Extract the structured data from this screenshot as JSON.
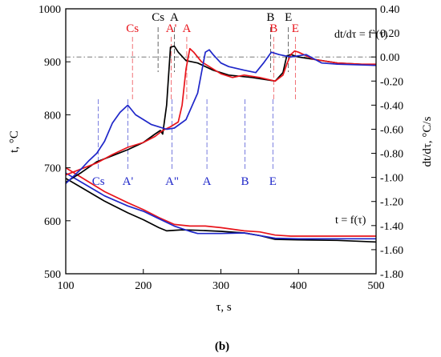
{
  "colors": {
    "black": "#000000",
    "red": "#e8141b",
    "blue": "#1f27c9"
  },
  "caption": "(b)",
  "chart_data": {
    "type": "line",
    "x": {
      "label": "τ, s",
      "range": [
        100,
        500
      ],
      "ticks": [
        100,
        200,
        300,
        400,
        500
      ],
      "tick_labels": [
        "100",
        "200",
        "300",
        "400",
        "500"
      ]
    },
    "y_left": {
      "label": "t, °C",
      "range": [
        500,
        1000
      ],
      "ticks": [
        500,
        600,
        700,
        800,
        900,
        1000
      ],
      "tick_labels": [
        "500",
        "600",
        "700",
        "800",
        "900",
        "1000"
      ]
    },
    "y_right": {
      "label": "dt/dτ, °C/s",
      "range": [
        -1.8,
        0.4
      ],
      "ticks": [
        -1.8,
        -1.6,
        -1.4,
        -1.2,
        -1.0,
        -0.8,
        -0.6,
        -0.4,
        -0.2,
        0.0,
        0.2,
        0.4
      ],
      "tick_labels": [
        "-1.80",
        "-1.60",
        "-1.40",
        "-1.20",
        "-1.00",
        "-0.80",
        "-0.60",
        "-0.40",
        "-0.20",
        "0.00",
        "0.20",
        "0.40"
      ]
    },
    "grid": false,
    "reference_line_right_axis": 0.0,
    "curve_labels": {
      "temperature": "t = f(τ)",
      "derivative": "dt/dτ = f`(τ)"
    },
    "temperature_series": [
      {
        "color": "black",
        "points": [
          [
            100,
            680
          ],
          [
            120,
            663
          ],
          [
            150,
            637
          ],
          [
            180,
            615
          ],
          [
            200,
            602
          ],
          [
            220,
            587
          ],
          [
            230,
            581
          ],
          [
            250,
            583
          ],
          [
            270,
            582
          ],
          [
            300,
            580
          ],
          [
            330,
            577
          ],
          [
            350,
            572
          ],
          [
            370,
            565
          ],
          [
            400,
            564
          ],
          [
            450,
            563
          ],
          [
            500,
            560
          ]
        ]
      },
      {
        "color": "red",
        "points": [
          [
            100,
            700
          ],
          [
            120,
            682
          ],
          [
            150,
            655
          ],
          [
            180,
            634
          ],
          [
            200,
            621
          ],
          [
            220,
            606
          ],
          [
            240,
            593
          ],
          [
            260,
            590
          ],
          [
            280,
            590
          ],
          [
            300,
            587
          ],
          [
            330,
            581
          ],
          [
            350,
            579
          ],
          [
            370,
            573
          ],
          [
            390,
            571
          ],
          [
            450,
            571
          ],
          [
            500,
            571
          ]
        ]
      },
      {
        "color": "blue",
        "points": [
          [
            100,
            690
          ],
          [
            120,
            673
          ],
          [
            150,
            647
          ],
          [
            180,
            628
          ],
          [
            200,
            618
          ],
          [
            220,
            604
          ],
          [
            240,
            590
          ],
          [
            260,
            580
          ],
          [
            270,
            576
          ],
          [
            300,
            576
          ],
          [
            330,
            577
          ],
          [
            350,
            572
          ],
          [
            370,
            567
          ],
          [
            400,
            566
          ],
          [
            450,
            566
          ],
          [
            500,
            566
          ]
        ]
      }
    ],
    "derivative_series": [
      {
        "color": "black",
        "points": [
          [
            100,
            -1.04
          ],
          [
            120,
            -0.96
          ],
          [
            140,
            -0.87
          ],
          [
            160,
            -0.82
          ],
          [
            180,
            -0.77
          ],
          [
            200,
            -0.71
          ],
          [
            215,
            -0.64
          ],
          [
            222,
            -0.61
          ],
          [
            225,
            -0.64
          ],
          [
            230,
            -0.4
          ],
          [
            235,
            0.08
          ],
          [
            240,
            0.09
          ],
          [
            245,
            0.04
          ],
          [
            255,
            -0.03
          ],
          [
            270,
            -0.05
          ],
          [
            290,
            -0.11
          ],
          [
            310,
            -0.15
          ],
          [
            325,
            -0.16
          ],
          [
            340,
            -0.17
          ],
          [
            360,
            -0.19
          ],
          [
            370,
            -0.2
          ],
          [
            380,
            -0.13
          ],
          [
            385,
            0.01
          ],
          [
            390,
            0.02
          ],
          [
            400,
            0.0
          ],
          [
            420,
            -0.02
          ],
          [
            450,
            -0.05
          ],
          [
            480,
            -0.06
          ],
          [
            500,
            -0.07
          ]
        ]
      },
      {
        "color": "red",
        "points": [
          [
            100,
            -0.98
          ],
          [
            120,
            -0.93
          ],
          [
            140,
            -0.88
          ],
          [
            160,
            -0.81
          ],
          [
            180,
            -0.75
          ],
          [
            200,
            -0.71
          ],
          [
            215,
            -0.66
          ],
          [
            225,
            -0.61
          ],
          [
            235,
            -0.58
          ],
          [
            245,
            -0.54
          ],
          [
            250,
            -0.4
          ],
          [
            255,
            -0.1
          ],
          [
            260,
            0.07
          ],
          [
            265,
            0.04
          ],
          [
            275,
            -0.04
          ],
          [
            290,
            -0.1
          ],
          [
            300,
            -0.14
          ],
          [
            315,
            -0.17
          ],
          [
            330,
            -0.15
          ],
          [
            350,
            -0.17
          ],
          [
            370,
            -0.2
          ],
          [
            380,
            -0.15
          ],
          [
            385,
            -0.06
          ],
          [
            390,
            0.02
          ],
          [
            395,
            0.05
          ],
          [
            400,
            0.04
          ],
          [
            420,
            -0.02
          ],
          [
            450,
            -0.05
          ],
          [
            480,
            -0.06
          ],
          [
            500,
            -0.06
          ]
        ]
      },
      {
        "color": "blue",
        "points": [
          [
            100,
            -1.05
          ],
          [
            120,
            -0.93
          ],
          [
            130,
            -0.86
          ],
          [
            140,
            -0.8
          ],
          [
            150,
            -0.7
          ],
          [
            160,
            -0.55
          ],
          [
            170,
            -0.46
          ],
          [
            180,
            -0.4
          ],
          [
            190,
            -0.48
          ],
          [
            200,
            -0.52
          ],
          [
            210,
            -0.56
          ],
          [
            220,
            -0.58
          ],
          [
            230,
            -0.6
          ],
          [
            240,
            -0.59
          ],
          [
            255,
            -0.52
          ],
          [
            270,
            -0.3
          ],
          [
            280,
            0.04
          ],
          [
            285,
            0.06
          ],
          [
            290,
            0.02
          ],
          [
            300,
            -0.05
          ],
          [
            310,
            -0.08
          ],
          [
            330,
            -0.11
          ],
          [
            345,
            -0.13
          ],
          [
            355,
            -0.05
          ],
          [
            365,
            0.04
          ],
          [
            375,
            0.02
          ],
          [
            390,
            0.0
          ],
          [
            410,
            0.02
          ],
          [
            430,
            -0.05
          ],
          [
            450,
            -0.06
          ],
          [
            500,
            -0.07
          ]
        ]
      }
    ],
    "markers": [
      {
        "label": "Cs",
        "color": "black",
        "x": 219,
        "position": "top"
      },
      {
        "label": "A",
        "color": "black",
        "x": 240,
        "position": "top"
      },
      {
        "label": "B",
        "color": "black",
        "x": 364,
        "position": "top"
      },
      {
        "label": "E",
        "color": "black",
        "x": 387,
        "position": "top"
      },
      {
        "label": "Cs",
        "color": "red",
        "x": 186,
        "position": "top"
      },
      {
        "label": "A'",
        "color": "red",
        "x": 236,
        "position": "top"
      },
      {
        "label": "A",
        "color": "red",
        "x": 256,
        "position": "top"
      },
      {
        "label": "B",
        "color": "red",
        "x": 368,
        "position": "top"
      },
      {
        "label": "E",
        "color": "red",
        "x": 396,
        "position": "top"
      },
      {
        "label": "Cs",
        "color": "blue",
        "x": 142,
        "position": "bottom"
      },
      {
        "label": "A'",
        "color": "blue",
        "x": 180,
        "position": "bottom"
      },
      {
        "label": "A\"",
        "color": "blue",
        "x": 237,
        "position": "bottom"
      },
      {
        "label": "A",
        "color": "blue",
        "x": 282,
        "position": "bottom"
      },
      {
        "label": "B",
        "color": "blue",
        "x": 331,
        "position": "bottom"
      },
      {
        "label": "E",
        "color": "blue",
        "x": 367,
        "position": "bottom"
      }
    ]
  }
}
